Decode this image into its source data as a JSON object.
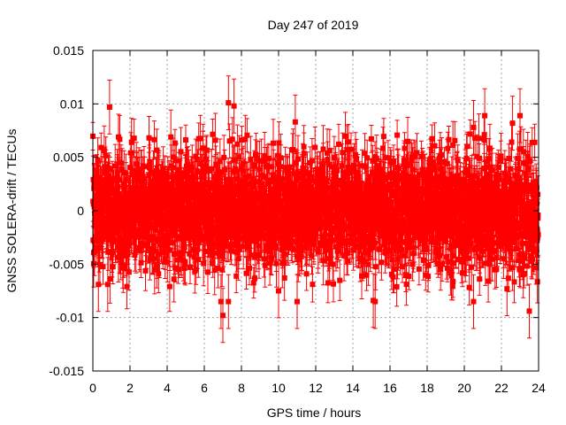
{
  "chart_data": {
    "type": "scatter",
    "title": "Day 247 of 2019",
    "xlabel": "GPS time / hours",
    "ylabel": "GNSS SOLERA-drift / TECUs",
    "xlim": [
      0,
      24
    ],
    "ylim": [
      -0.015,
      0.015
    ],
    "xticks": [
      "0",
      "2",
      "4",
      "6",
      "8",
      "10",
      "12",
      "14",
      "16",
      "18",
      "20",
      "22",
      "24"
    ],
    "yticks": [
      "-0.015",
      "-0.01",
      "-0.005",
      "0",
      "0.005",
      "0.01",
      "0.015"
    ],
    "grid": true,
    "series_color": "#ff0000",
    "error_bars": true,
    "marker": "square",
    "samples": 2880,
    "sample_interval_hours": 0.00833,
    "typical_spread_std": 0.0026,
    "typical_error_bar": 0.0018,
    "notable_points": [
      {
        "x": 0.9,
        "y": 0.0097
      },
      {
        "x": 7.3,
        "y": 0.0101
      },
      {
        "x": 7.6,
        "y": 0.0098
      },
      {
        "x": 10.9,
        "y": 0.0083
      },
      {
        "x": 21.1,
        "y": 0.0089
      },
      {
        "x": 23.0,
        "y": 0.0089
      },
      {
        "x": 22.6,
        "y": 0.0082
      },
      {
        "x": 6.6,
        "y": 0.0066
      },
      {
        "x": 4.2,
        "y": 0.0069
      },
      {
        "x": 20.5,
        "y": 0.0078
      },
      {
        "x": 7.0,
        "y": -0.0098
      },
      {
        "x": 7.3,
        "y": -0.0085
      },
      {
        "x": 6.9,
        "y": -0.0085
      },
      {
        "x": 23.5,
        "y": -0.0094
      },
      {
        "x": 15.1,
        "y": -0.0084
      },
      {
        "x": 15.2,
        "y": -0.0085
      },
      {
        "x": 20.5,
        "y": -0.0085
      },
      {
        "x": 0.3,
        "y": -0.0069
      },
      {
        "x": 0.8,
        "y": -0.0069
      },
      {
        "x": 22.3,
        "y": -0.0073
      },
      {
        "x": 11.0,
        "y": -0.0085
      },
      {
        "x": 10.0,
        "y": -0.0075
      }
    ]
  }
}
